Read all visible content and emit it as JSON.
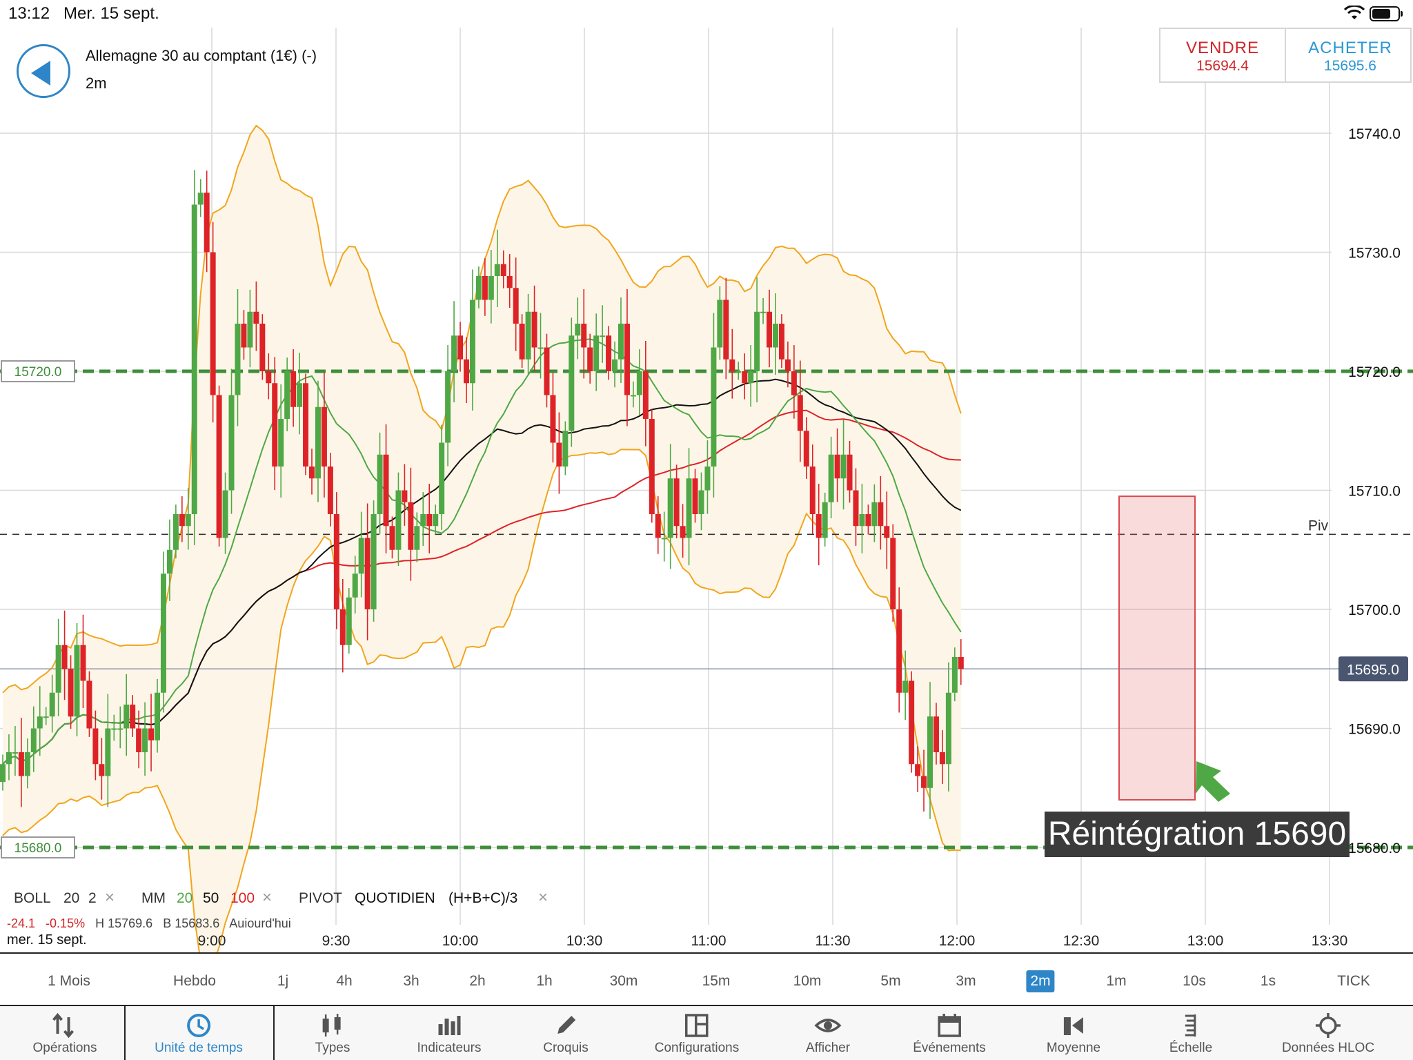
{
  "status_bar": {
    "time": "13:12",
    "date": "Mer. 15 sept."
  },
  "instrument": {
    "name": "Allemagne 30 au comptant (1€) (-)",
    "timeframe": "2m"
  },
  "trade": {
    "sell_label": "VENDRE",
    "sell_price": "15694.4",
    "buy_label": "ACHETER",
    "buy_price": "15695.6"
  },
  "chart_data": {
    "type": "candlestick",
    "y_ticks": [
      "15740.0",
      "15730.0",
      "15720.0",
      "15710.0",
      "15700.0",
      "15690.0",
      "15680.0"
    ],
    "ylim": [
      15674,
      15748
    ],
    "x_ticks": [
      "9:00",
      "9:30",
      "10:00",
      "10:30",
      "11:00",
      "11:30",
      "12:00",
      "12:30",
      "13:00",
      "13:30"
    ],
    "current_price": "15695.0",
    "levels": [
      {
        "label": "15720.0",
        "value": 15720,
        "style": "dashed-green"
      },
      {
        "label": "15680.0",
        "value": 15680,
        "style": "dashed-green"
      },
      {
        "label": "Piv",
        "value": 15706.3,
        "style": "dashed-black"
      }
    ],
    "annotation": {
      "text": "Réintégration 15690",
      "zone_high": 15709.5,
      "zone_low": 15684.0
    },
    "indicators": [
      "Bollinger Bands (20, 2)",
      "MM 20",
      "MM 50",
      "MM 100"
    ],
    "closes": [
      15687,
      15688,
      15688,
      15686,
      15688,
      15690,
      15691,
      15691,
      15693,
      15697,
      15695,
      15691,
      15697,
      15694,
      15690,
      15687,
      15686,
      15690,
      15690,
      15690,
      15692,
      15690,
      15688,
      15690,
      15689,
      15693,
      15703,
      15705,
      15708,
      15707,
      15708,
      15734,
      15735,
      15730,
      15718,
      15706,
      15710,
      15718,
      15724,
      15722,
      15725,
      15724,
      15720,
      15719,
      15712,
      15716,
      15720,
      15717,
      15719,
      15712,
      15711,
      15717,
      15712,
      15708,
      15700,
      15697,
      15701,
      15703,
      15706,
      15700,
      15708,
      15713,
      15707,
      15705,
      15710,
      15709,
      15705,
      15707,
      15708,
      15707,
      15708,
      15714,
      15720,
      15723,
      15721,
      15719,
      15726,
      15728,
      15726,
      15728,
      15729,
      15728,
      15727,
      15724,
      15721,
      15725,
      15722,
      15722,
      15718,
      15714,
      15712,
      15715,
      15723,
      15724,
      15722,
      15720,
      15723,
      15723,
      15720,
      15721,
      15724,
      15718,
      15718,
      15720,
      15716,
      15708,
      15706,
      15706,
      15711,
      15707,
      15706,
      15711,
      15708,
      15710,
      15712,
      15722,
      15726,
      15721,
      15720,
      15720,
      15719,
      15720,
      15725,
      15725,
      15722,
      15724,
      15721,
      15720,
      15718,
      15715,
      15712,
      15708,
      15706,
      15709,
      15713,
      15711,
      15713,
      15710,
      15707,
      15708,
      15707,
      15709,
      15707,
      15706,
      15700,
      15693,
      15694,
      15687,
      15686,
      15685,
      15691,
      15688,
      15687,
      15693,
      15696,
      15695
    ]
  },
  "legend": {
    "boll_label": "BOLL",
    "boll_period": "20",
    "boll_dev": "2",
    "mm_label": "MM",
    "mm1": "20",
    "mm2": "50",
    "mm3": "100",
    "pivot_label": "PIVOT",
    "pivot_type": "QUOTIDIEN",
    "pivot_formula": "(H+B+C)/3",
    "close_glyph": "×"
  },
  "stats": {
    "change": "-24.1",
    "change_pct": "-0.15%",
    "high": "H 15769.6",
    "low": "B 15683.6",
    "today": "Aujourd'hui"
  },
  "date_label": "mer. 15 sept.",
  "timeframes": [
    "1 Mois",
    "Hebdo",
    "1j",
    "4h",
    "3h",
    "2h",
    "1h",
    "30m",
    "15m",
    "10m",
    "5m",
    "3m",
    "2m",
    "1m",
    "10s",
    "1s",
    "TICK"
  ],
  "active_timeframe": "2m",
  "toolbar": [
    {
      "label": "Opérations",
      "icon": "arrows-updown-icon"
    },
    {
      "label": "Unité de temps",
      "icon": "clock-icon"
    },
    {
      "label": "Types",
      "icon": "candles-icon"
    },
    {
      "label": "Indicateurs",
      "icon": "bars-icon"
    },
    {
      "label": "Croquis",
      "icon": "pencil-icon"
    },
    {
      "label": "Configurations",
      "icon": "layout-icon"
    },
    {
      "label": "Afficher",
      "icon": "eye-icon"
    },
    {
      "label": "Événements",
      "icon": "calendar-icon"
    },
    {
      "label": "Moyenne",
      "icon": "volume-icon"
    },
    {
      "label": "Échelle",
      "icon": "scale-icon"
    },
    {
      "label": "Données HLOC",
      "icon": "crosshair-icon"
    }
  ],
  "colors": {
    "up": "#4fa845",
    "down": "#dd2327",
    "accent": "#2e86c8",
    "boll_band": "#f2a51c",
    "ma20": "#4fa845",
    "ma50": "#111111",
    "ma100": "#dd2327"
  }
}
